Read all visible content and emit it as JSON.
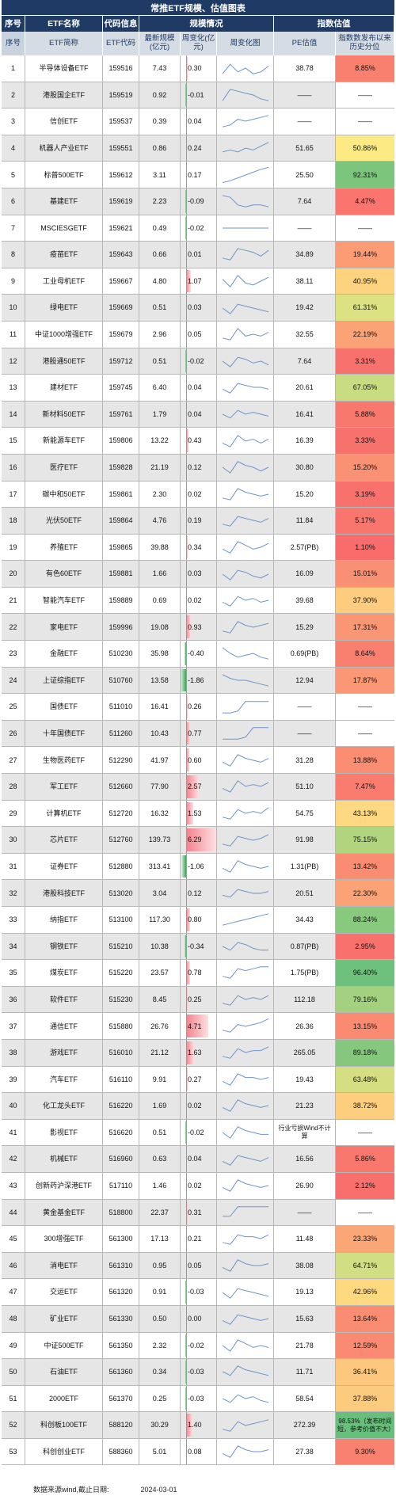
{
  "title": "常推ETF规模、估值图表",
  "header_groups": {
    "index": "序号",
    "etf_name": "ETF名称",
    "code_info": "代码信息",
    "scale": "规模情况",
    "valuation": "指数估值"
  },
  "columns": {
    "index": "序号",
    "short_name": "ETF简称",
    "code": "ETF代码",
    "latest_scale": "最新规模(亿元)",
    "weekly_change": "周变化(亿元)",
    "weekly_chart": "周变化图",
    "pe": "PE估值",
    "pct": "指数数发布以来历史分位"
  },
  "rows": [
    {
      "n": "1",
      "name": "半导体设备ETF",
      "code": "159516",
      "scale": "7.43",
      "chg": "0.30",
      "chgv": 0.3,
      "pe": "38.78",
      "pct": "8.85%",
      "pctv": 8.85,
      "spark": [
        0.2,
        0.7,
        0.3,
        0.5,
        0.2,
        0.3,
        0.6
      ]
    },
    {
      "n": "2",
      "name": "港股国企ETF",
      "code": "159519",
      "scale": "0.92",
      "chg": "-0.01",
      "chgv": -0.01,
      "pe": "——",
      "pct": "——",
      "pctv": null,
      "spark": [
        0.2,
        0.8,
        0.7,
        0.6,
        0.5,
        0.3,
        0.2
      ]
    },
    {
      "n": "3",
      "name": "信创ETF",
      "code": "159537",
      "scale": "0.39",
      "chg": "0.04",
      "chgv": 0.04,
      "pe": "——",
      "pct": "——",
      "pctv": null,
      "spark": [
        0.2,
        0.3,
        0.6,
        0.5,
        0.6,
        0.7,
        0.8
      ]
    },
    {
      "n": "4",
      "name": "机器人产业ETF",
      "code": "159551",
      "scale": "0.86",
      "chg": "0.24",
      "chgv": 0.24,
      "pe": "51.65",
      "pct": "50.86%",
      "pctv": 50.86,
      "spark": [
        0.3,
        0.4,
        0.3,
        0.5,
        0.4,
        0.6,
        0.8
      ]
    },
    {
      "n": "5",
      "name": "标普500ETF",
      "code": "159612",
      "scale": "3.11",
      "chg": "0.17",
      "chgv": 0.17,
      "pe": "25.50",
      "pct": "92.31%",
      "pctv": 92.31,
      "spark": [
        0.1,
        0.2,
        0.35,
        0.5,
        0.65,
        0.8,
        0.9
      ]
    },
    {
      "n": "6",
      "name": "基建ETF",
      "code": "159619",
      "scale": "2.23",
      "chg": "-0.09",
      "chgv": -0.09,
      "pe": "7.64",
      "pct": "4.47%",
      "pctv": 4.47,
      "spark": [
        0.8,
        0.7,
        0.3,
        0.2,
        0.3,
        0.3,
        0.2
      ]
    },
    {
      "n": "7",
      "name": "MSCIESGETF",
      "code": "159621",
      "scale": "0.49",
      "chg": "-0.02",
      "chgv": -0.02,
      "pe": "——",
      "pct": "——",
      "pctv": null,
      "spark": [
        0.5,
        0.5,
        0.5,
        0.5,
        0.5,
        0.5,
        0.5
      ]
    },
    {
      "n": "8",
      "name": "疫苗ETF",
      "code": "159643",
      "scale": "0.66",
      "chg": "0.01",
      "chgv": 0.01,
      "pe": "34.89",
      "pct": "19.44%",
      "pctv": 19.44,
      "spark": [
        0.3,
        0.2,
        0.8,
        0.7,
        0.6,
        0.4,
        0.7
      ]
    },
    {
      "n": "9",
      "name": "工业母机ETF",
      "code": "159667",
      "scale": "4.80",
      "chg": "1.07",
      "chgv": 1.07,
      "pe": "38.11",
      "pct": "40.95%",
      "pctv": 40.95,
      "spark": [
        0.6,
        0.2,
        0.8,
        0.4,
        0.3,
        0.5,
        0.7
      ]
    },
    {
      "n": "10",
      "name": "绿电ETF",
      "code": "159669",
      "scale": "0.51",
      "chg": "0.03",
      "chgv": 0.03,
      "pe": "19.42",
      "pct": "61.31%",
      "pctv": 61.31,
      "spark": [
        0.5,
        0.2,
        0.7,
        0.6,
        0.5,
        0.4,
        0.3
      ]
    },
    {
      "n": "11",
      "name": "中证1000增强ETF",
      "code": "159679",
      "scale": "2.96",
      "chg": "0.05",
      "chgv": 0.05,
      "pe": "32.55",
      "pct": "22.19%",
      "pctv": 22.19,
      "spark": [
        0.3,
        0.2,
        0.8,
        0.4,
        0.5,
        0.4,
        0.6
      ]
    },
    {
      "n": "12",
      "name": "港股通50ETF",
      "code": "159712",
      "scale": "0.51",
      "chg": "-0.02",
      "chgv": -0.02,
      "pe": "7.64",
      "pct": "3.31%",
      "pctv": 3.31,
      "spark": [
        0.5,
        0.2,
        0.7,
        0.6,
        0.4,
        0.5,
        0.3
      ]
    },
    {
      "n": "13",
      "name": "建材ETF",
      "code": "159745",
      "scale": "6.40",
      "chg": "0.04",
      "chgv": 0.04,
      "pe": "20.61",
      "pct": "67.05%",
      "pctv": 67.05,
      "spark": [
        0.4,
        0.2,
        0.7,
        0.6,
        0.5,
        0.5,
        0.4
      ]
    },
    {
      "n": "14",
      "name": "新材料50ETF",
      "code": "159761",
      "scale": "1.79",
      "chg": "0.04",
      "chgv": 0.04,
      "pe": "16.41",
      "pct": "5.88%",
      "pctv": 5.88,
      "spark": [
        0.5,
        0.3,
        0.7,
        0.5,
        0.6,
        0.5,
        0.4
      ]
    },
    {
      "n": "15",
      "name": "新能源车ETF",
      "code": "159806",
      "scale": "13.22",
      "chg": "0.43",
      "chgv": 0.43,
      "pe": "16.39",
      "pct": "3.33%",
      "pctv": 3.33,
      "spark": [
        0.4,
        0.2,
        0.8,
        0.5,
        0.6,
        0.4,
        0.6
      ]
    },
    {
      "n": "16",
      "name": "医疗ETF",
      "code": "159828",
      "scale": "21.19",
      "chg": "0.12",
      "chgv": 0.12,
      "pe": "30.80",
      "pct": "15.20%",
      "pctv": 15.2,
      "spark": [
        0.5,
        0.2,
        0.8,
        0.6,
        0.5,
        0.3,
        0.5
      ]
    },
    {
      "n": "17",
      "name": "碳中和50ETF",
      "code": "159861",
      "scale": "2.30",
      "chg": "0.02",
      "chgv": 0.02,
      "pe": "15.20",
      "pct": "3.19%",
      "pctv": 3.19,
      "spark": [
        0.3,
        0.2,
        0.8,
        0.6,
        0.5,
        0.4,
        0.5
      ]
    },
    {
      "n": "18",
      "name": "光伏50ETF",
      "code": "159864",
      "scale": "4.76",
      "chg": "0.19",
      "chgv": 0.19,
      "pe": "11.84",
      "pct": "5.17%",
      "pctv": 5.17,
      "spark": [
        0.3,
        0.2,
        0.7,
        0.6,
        0.5,
        0.4,
        0.6
      ]
    },
    {
      "n": "19",
      "name": "养殖ETF",
      "code": "159865",
      "scale": "39.88",
      "chg": "0.34",
      "chgv": 0.34,
      "pe": "2.57(PB)",
      "pct": "1.10%",
      "pctv": 1.1,
      "spark": [
        0.4,
        0.2,
        0.8,
        0.6,
        0.4,
        0.5,
        0.7
      ]
    },
    {
      "n": "20",
      "name": "有色60ETF",
      "code": "159881",
      "scale": "1.66",
      "chg": "0.03",
      "chgv": 0.03,
      "pe": "16.09",
      "pct": "15.01%",
      "pctv": 15.01,
      "spark": [
        0.5,
        0.2,
        0.7,
        0.6,
        0.4,
        0.3,
        0.5
      ]
    },
    {
      "n": "21",
      "name": "智能汽车ETF",
      "code": "159889",
      "scale": "0.69",
      "chg": "0.02",
      "chgv": 0.02,
      "pe": "39.68",
      "pct": "37.90%",
      "pctv": 37.9,
      "spark": [
        0.4,
        0.2,
        0.7,
        0.5,
        0.6,
        0.4,
        0.5
      ]
    },
    {
      "n": "22",
      "name": "家电ETF",
      "code": "159996",
      "scale": "19.08",
      "chg": "0.93",
      "chgv": 0.93,
      "pe": "15.29",
      "pct": "17.31%",
      "pctv": 17.31,
      "spark": [
        0.3,
        0.2,
        0.8,
        0.6,
        0.5,
        0.6,
        0.7
      ]
    },
    {
      "n": "23",
      "name": "金融ETF",
      "code": "510230",
      "scale": "35.98",
      "chg": "-0.40",
      "chgv": -0.4,
      "pe": "0.69(PB)",
      "pct": "8.64%",
      "pctv": 8.64,
      "spark": [
        0.8,
        0.5,
        0.3,
        0.4,
        0.5,
        0.3,
        0.2
      ]
    },
    {
      "n": "24",
      "name": "上证综指ETF",
      "code": "510760",
      "scale": "13.58",
      "chg": "-1.86",
      "chgv": -1.86,
      "pe": "12.94",
      "pct": "17.87%",
      "pctv": 17.87,
      "spark": [
        0.8,
        0.6,
        0.5,
        0.5,
        0.4,
        0.3,
        0.2
      ]
    },
    {
      "n": "25",
      "name": "国债ETF",
      "code": "511010",
      "scale": "16.41",
      "chg": "0.26",
      "chgv": 0.26,
      "pe": "——",
      "pct": "——",
      "pctv": null,
      "spark": [
        0.2,
        0.2,
        0.3,
        0.8,
        0.8,
        0.8,
        0.8
      ]
    },
    {
      "n": "26",
      "name": "十年国债ETF",
      "code": "511260",
      "scale": "10.43",
      "chg": "0.77",
      "chgv": 0.77,
      "pe": "——",
      "pct": "——",
      "pctv": null,
      "spark": [
        0.2,
        0.2,
        0.2,
        0.3,
        0.8,
        0.8,
        0.8
      ]
    },
    {
      "n": "27",
      "name": "生物医药ETF",
      "code": "512290",
      "scale": "41.97",
      "chg": "0.60",
      "chgv": 0.6,
      "pe": "31.28",
      "pct": "13.88%",
      "pctv": 13.88,
      "spark": [
        0.4,
        0.2,
        0.8,
        0.6,
        0.5,
        0.4,
        0.6
      ]
    },
    {
      "n": "28",
      "name": "军工ETF",
      "code": "512660",
      "scale": "77.90",
      "chg": "2.57",
      "chgv": 2.57,
      "pe": "51.10",
      "pct": "7.47%",
      "pctv": 7.47,
      "spark": [
        0.4,
        0.2,
        0.8,
        0.5,
        0.6,
        0.5,
        0.7
      ]
    },
    {
      "n": "29",
      "name": "计算机ETF",
      "code": "512720",
      "scale": "16.32",
      "chg": "1.53",
      "chgv": 1.53,
      "pe": "54.75",
      "pct": "43.13%",
      "pctv": 43.13,
      "spark": [
        0.3,
        0.2,
        0.7,
        0.5,
        0.6,
        0.5,
        0.8
      ]
    },
    {
      "n": "30",
      "name": "芯片ETF",
      "code": "512760",
      "scale": "139.73",
      "chg": "6.29",
      "chgv": 6.29,
      "pe": "91.98",
      "pct": "75.15%",
      "pctv": 75.15,
      "spark": [
        0.3,
        0.2,
        0.7,
        0.6,
        0.5,
        0.6,
        0.8
      ]
    },
    {
      "n": "31",
      "name": "证券ETF",
      "code": "512880",
      "scale": "313.41",
      "chg": "-1.06",
      "chgv": -1.06,
      "pe": "1.31(PB)",
      "pct": "13.42%",
      "pctv": 13.42,
      "spark": [
        0.4,
        0.2,
        0.8,
        0.6,
        0.5,
        0.4,
        0.5
      ]
    },
    {
      "n": "32",
      "name": "港股科技ETF",
      "code": "513020",
      "scale": "3.04",
      "chg": "0.12",
      "chgv": 0.12,
      "pe": "20.51",
      "pct": "22.30%",
      "pctv": 22.3,
      "spark": [
        0.4,
        0.3,
        0.7,
        0.6,
        0.5,
        0.5,
        0.6
      ]
    },
    {
      "n": "33",
      "name": "纳指ETF",
      "code": "513100",
      "scale": "117.30",
      "chg": "0.80",
      "chgv": 0.8,
      "pe": "34.43",
      "pct": "88.24%",
      "pctv": 88.24,
      "spark": [
        0.2,
        0.3,
        0.4,
        0.5,
        0.6,
        0.7,
        0.8
      ]
    },
    {
      "n": "34",
      "name": "钢铁ETF",
      "code": "515210",
      "scale": "10.38",
      "chg": "-0.34",
      "chgv": -0.34,
      "pe": "0.87(PB)",
      "pct": "2.95%",
      "pctv": 2.95,
      "spark": [
        0.5,
        0.3,
        0.7,
        0.6,
        0.4,
        0.3,
        0.3
      ]
    },
    {
      "n": "35",
      "name": "煤炭ETF",
      "code": "515220",
      "scale": "23.57",
      "chg": "0.78",
      "chgv": 0.78,
      "pe": "1.75(PB)",
      "pct": "96.40%",
      "pctv": 96.4,
      "spark": [
        0.3,
        0.2,
        0.7,
        0.6,
        0.7,
        0.8,
        0.8
      ]
    },
    {
      "n": "36",
      "name": "软件ETF",
      "code": "515230",
      "scale": "8.45",
      "chg": "0.25",
      "chgv": 0.25,
      "pe": "112.18",
      "pct": "79.16%",
      "pctv": 79.16,
      "spark": [
        0.3,
        0.2,
        0.7,
        0.5,
        0.6,
        0.5,
        0.7
      ]
    },
    {
      "n": "37",
      "name": "通信ETF",
      "code": "515880",
      "scale": "26.76",
      "chg": "4.71",
      "chgv": 4.71,
      "pe": "26.36",
      "pct": "13.15%",
      "pctv": 13.15,
      "spark": [
        0.3,
        0.2,
        0.6,
        0.5,
        0.6,
        0.7,
        0.9
      ]
    },
    {
      "n": "38",
      "name": "游戏ETF",
      "code": "516010",
      "scale": "21.12",
      "chg": "1.63",
      "chgv": 1.63,
      "pe": "265.05",
      "pct": "89.18%",
      "pctv": 89.18,
      "spark": [
        0.3,
        0.2,
        0.7,
        0.5,
        0.6,
        0.6,
        0.8
      ]
    },
    {
      "n": "39",
      "name": "汽车ETF",
      "code": "516110",
      "scale": "9.91",
      "chg": "0.27",
      "chgv": 0.27,
      "pe": "19.43",
      "pct": "63.48%",
      "pctv": 63.48,
      "spark": [
        0.4,
        0.2,
        0.8,
        0.6,
        0.6,
        0.5,
        0.6
      ]
    },
    {
      "n": "40",
      "name": "化工龙头ETF",
      "code": "516220",
      "scale": "1.69",
      "chg": "0.02",
      "chgv": 0.02,
      "pe": "21.23",
      "pct": "38.72%",
      "pctv": 38.72,
      "spark": [
        0.4,
        0.2,
        0.8,
        0.6,
        0.5,
        0.4,
        0.5
      ]
    },
    {
      "n": "41",
      "name": "影视ETF",
      "code": "516620",
      "scale": "0.51",
      "chg": "-0.02",
      "chgv": -0.02,
      "pe": "行业亏损Wind不计算",
      "pct": "——",
      "pctv": null,
      "spark": [
        0.5,
        0.2,
        0.8,
        0.6,
        0.5,
        0.4,
        0.4
      ]
    },
    {
      "n": "42",
      "name": "机械ETF",
      "code": "516960",
      "scale": "0.63",
      "chg": "0.04",
      "chgv": 0.04,
      "pe": "16.56",
      "pct": "5.86%",
      "pctv": 5.86,
      "spark": [
        0.4,
        0.2,
        0.7,
        0.6,
        0.5,
        0.4,
        0.6
      ]
    },
    {
      "n": "43",
      "name": "创新药沪深港ETF",
      "code": "517110",
      "scale": "1.46",
      "chg": "0.02",
      "chgv": 0.02,
      "pe": "26.90",
      "pct": "2.12%",
      "pctv": 2.12,
      "spark": [
        0.4,
        0.2,
        0.8,
        0.6,
        0.5,
        0.4,
        0.5
      ]
    },
    {
      "n": "44",
      "name": "黄金基金ETF",
      "code": "518800",
      "scale": "22.37",
      "chg": "0.31",
      "chgv": 0.31,
      "pe": "——",
      "pct": "——",
      "pctv": null,
      "spark": [
        0.3,
        0.3,
        0.8,
        0.8,
        0.8,
        0.8,
        0.8
      ]
    },
    {
      "n": "45",
      "name": "300增强ETF",
      "code": "561300",
      "scale": "17.13",
      "chg": "0.21",
      "chgv": 0.21,
      "pe": "11.48",
      "pct": "23.33%",
      "pctv": 23.33,
      "spark": [
        0.3,
        0.2,
        0.7,
        0.6,
        0.6,
        0.5,
        0.7
      ]
    },
    {
      "n": "46",
      "name": "消电ETF",
      "code": "561310",
      "scale": "0.95",
      "chg": "0.05",
      "chgv": 0.05,
      "pe": "38.08",
      "pct": "64.71%",
      "pctv": 64.71,
      "spark": [
        0.4,
        0.2,
        0.8,
        0.6,
        0.5,
        0.5,
        0.6
      ]
    },
    {
      "n": "47",
      "name": "交运ETF",
      "code": "561320",
      "scale": "0.91",
      "chg": "-0.03",
      "chgv": -0.03,
      "pe": "19.13",
      "pct": "42.96%",
      "pctv": 42.96,
      "spark": [
        0.5,
        0.2,
        0.7,
        0.6,
        0.5,
        0.4,
        0.3
      ]
    },
    {
      "n": "48",
      "name": "矿业ETF",
      "code": "561330",
      "scale": "0.50",
      "chg": "0.00",
      "chgv": 0.0,
      "pe": "15.63",
      "pct": "13.64%",
      "pctv": 13.64,
      "spark": [
        0.4,
        0.2,
        0.7,
        0.6,
        0.5,
        0.4,
        0.5
      ]
    },
    {
      "n": "49",
      "name": "中证500ETF",
      "code": "561350",
      "scale": "2.32",
      "chg": "-0.02",
      "chgv": -0.02,
      "pe": "21.78",
      "pct": "12.59%",
      "pctv": 12.59,
      "spark": [
        0.5,
        0.2,
        0.8,
        0.6,
        0.4,
        0.5,
        0.4
      ]
    },
    {
      "n": "50",
      "name": "石油ETF",
      "code": "561360",
      "scale": "0.34",
      "chg": "-0.03",
      "chgv": -0.03,
      "pe": "11.71",
      "pct": "36.41%",
      "pctv": 36.41,
      "spark": [
        0.5,
        0.3,
        0.8,
        0.6,
        0.5,
        0.4,
        0.3
      ]
    },
    {
      "n": "51",
      "name": "2000ETF",
      "code": "561370",
      "scale": "0.25",
      "chg": "-0.03",
      "chgv": -0.03,
      "pe": "58.54",
      "pct": "37.88%",
      "pctv": 37.88,
      "spark": [
        0.5,
        0.3,
        0.7,
        0.5,
        0.6,
        0.4,
        0.3
      ]
    },
    {
      "n": "52",
      "name": "科创板100ETF",
      "code": "588120",
      "scale": "30.29",
      "chg": "1.40",
      "chgv": 1.4,
      "pe": "272.39",
      "pct": "98.53%（发布时间短，参考价值不大）",
      "pctv": 98.53,
      "spark": [
        0.3,
        0.2,
        0.7,
        0.5,
        0.6,
        0.7,
        0.8
      ]
    },
    {
      "n": "53",
      "name": "科创创业ETF",
      "code": "588360",
      "scale": "5.01",
      "chg": "0.08",
      "chgv": 0.08,
      "pe": "27.38",
      "pct": "9.30%",
      "pctv": 9.3,
      "spark": [
        0.4,
        0.2,
        0.8,
        0.6,
        0.5,
        0.5,
        0.6
      ]
    }
  ],
  "footer": {
    "source": "数据来源wind,截止日期:",
    "date": "2024-03-01"
  },
  "colors": {
    "header_dark": "#1f3a64",
    "header_light": "#d6dce4",
    "stripe": "#e6e6e6",
    "pos_bar": "#f4808a",
    "neg_bar": "#3ea55a",
    "spark_line": "#6f93c8",
    "pct_low": "#f8696b",
    "pct_mid": "#ffeb84",
    "pct_high": "#63be7b"
  }
}
